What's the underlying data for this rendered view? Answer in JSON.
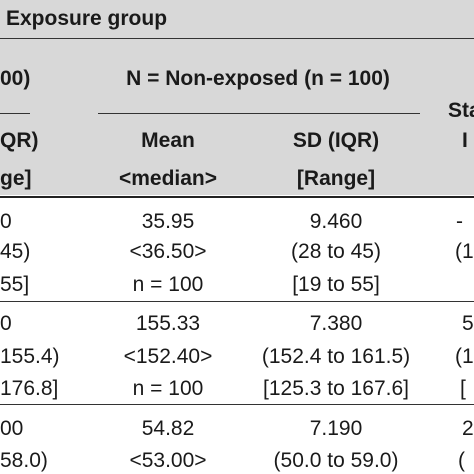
{
  "table": {
    "title": "Exposure group",
    "group_left_partial": "00)",
    "group_nonexposed": "N = Non-exposed (n = 100)",
    "group_right_partial": "Sta",
    "group_right_partial2": "I",
    "columns": {
      "left_partial_1": "QR)",
      "left_partial_2": "ge]",
      "mean_1": "Mean",
      "mean_2": "<median>",
      "sd_1": "SD (IQR)",
      "sd_2": "[Range]"
    },
    "rows": [
      {
        "left": [
          "0",
          "45)",
          "55]"
        ],
        "mean": [
          "35.95",
          "<36.50>",
          "n = 100"
        ],
        "sd": [
          "9.460",
          "(28 to 45)",
          "[19 to 55]"
        ],
        "right": [
          "-",
          "(1",
          ""
        ]
      },
      {
        "left": [
          "0",
          "155.4)",
          "176.8]"
        ],
        "mean": [
          "155.33",
          "<152.40>",
          "n = 100"
        ],
        "sd": [
          "7.380",
          "(152.4 to 161.5)",
          "[125.3 to 167.6]"
        ],
        "right": [
          "5",
          "(1",
          "["
        ]
      },
      {
        "left": [
          "00",
          "58.0)",
          ""
        ],
        "mean": [
          "54.82",
          "<53.00>",
          ""
        ],
        "sd": [
          "7.190",
          "(50.0 to 59.0)",
          ""
        ],
        "right": [
          "2",
          "(",
          ""
        ]
      }
    ]
  }
}
